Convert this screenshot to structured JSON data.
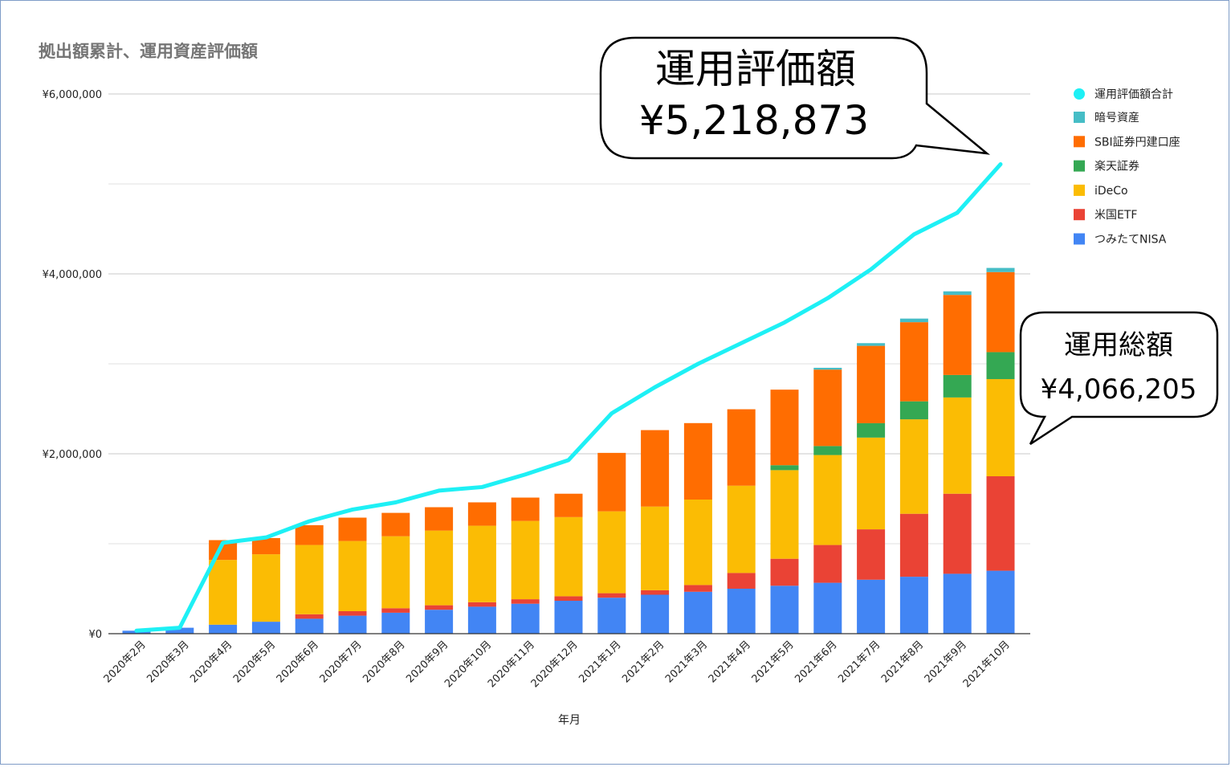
{
  "chart_data": {
    "type": "bar",
    "stacked": true,
    "title": "拠出額累計、運用資産評価額",
    "xlabel": "年月",
    "ylabel": "",
    "ylim": [
      0,
      6000000
    ],
    "y_ticks": [
      {
        "value": 0,
        "label": "¥0"
      },
      {
        "value": 2000000,
        "label": "¥2,000,000"
      },
      {
        "value": 4000000,
        "label": "¥4,000,000"
      },
      {
        "value": 6000000,
        "label": "¥6,000,000"
      }
    ],
    "grid": true,
    "legend_position": "right",
    "categories": [
      "2020年2月",
      "2020年3月",
      "2020年4月",
      "2020年5月",
      "2020年6月",
      "2020年7月",
      "2020年8月",
      "2020年9月",
      "2020年10月",
      "2020年11月",
      "2020年12月",
      "2021年1月",
      "2021年2月",
      "2021年3月",
      "2021年4月",
      "2021年5月",
      "2021年6月",
      "2021年7月",
      "2021年8月",
      "2021年9月",
      "2021年10月"
    ],
    "series": [
      {
        "name": "つみたてNISA",
        "color": "#4285f4",
        "values": [
          33000,
          66000,
          100000,
          133000,
          166000,
          200000,
          233000,
          266000,
          300000,
          333000,
          366000,
          400000,
          433000,
          466000,
          500000,
          533000,
          566000,
          600000,
          633000,
          666000,
          700000
        ]
      },
      {
        "name": "米国ETF",
        "color": "#ea4335",
        "values": [
          0,
          0,
          0,
          0,
          50000,
          50000,
          50000,
          50000,
          50000,
          50000,
          50000,
          50000,
          50000,
          75000,
          175000,
          300000,
          420000,
          560000,
          700000,
          890000,
          1050000
        ]
      },
      {
        "name": "iDeCo",
        "color": "#fbbc04",
        "values": [
          0,
          0,
          720000,
          750000,
          770000,
          780000,
          800000,
          830000,
          850000,
          870000,
          880000,
          910000,
          930000,
          950000,
          970000,
          985000,
          1000000,
          1020000,
          1050000,
          1070000,
          1080000
        ]
      },
      {
        "name": "楽天証券",
        "color": "#34a853",
        "values": [
          0,
          0,
          0,
          0,
          0,
          0,
          0,
          0,
          0,
          0,
          0,
          0,
          0,
          0,
          0,
          55000,
          100000,
          160000,
          200000,
          250000,
          300000
        ]
      },
      {
        "name": "SBI証券円建口座",
        "color": "#ff6d01",
        "values": [
          0,
          0,
          220000,
          180000,
          220000,
          260000,
          260000,
          260000,
          260000,
          260000,
          260000,
          650000,
          850000,
          850000,
          850000,
          840000,
          850000,
          860000,
          880000,
          890000,
          890000
        ]
      },
      {
        "name": "暗号資産",
        "color": "#46bdc6",
        "values": [
          0,
          0,
          0,
          0,
          0,
          0,
          0,
          0,
          0,
          0,
          0,
          0,
          0,
          0,
          0,
          0,
          20000,
          30000,
          40000,
          40000,
          46205
        ]
      }
    ],
    "line_series": {
      "name": "運用評価額合計",
      "color": "#1ef0f5",
      "values": [
        33000,
        66000,
        1010000,
        1070000,
        1250000,
        1380000,
        1460000,
        1590000,
        1630000,
        1770000,
        1930000,
        2450000,
        2740000,
        3000000,
        3230000,
        3460000,
        3730000,
        4050000,
        4440000,
        4680000,
        5218873
      ]
    },
    "annotations": [
      {
        "name": "valuation-callout",
        "line1": "運用評価額",
        "line2": "¥5,218,873"
      },
      {
        "name": "total-callout",
        "line1": "運用総額",
        "line2": "¥4,066,205"
      }
    ]
  }
}
